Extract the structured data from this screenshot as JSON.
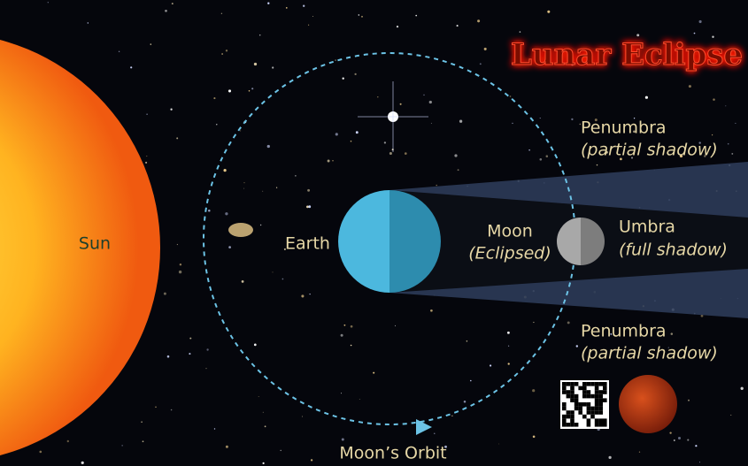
{
  "title": "Lunar Eclipse",
  "labels": {
    "sun": "Sun",
    "earth": "Earth",
    "moon": {
      "name": "Moon",
      "note": "(Eclipsed)"
    },
    "umbra": {
      "name": "Umbra",
      "note": "(full shadow)"
    },
    "penumbra_upper": {
      "name": "Penumbra",
      "note": "(partial shadow)"
    },
    "penumbra_lower": {
      "name": "Penumbra",
      "note": "(partial shadow)"
    },
    "orbit": "Moon’s Orbit"
  }
}
